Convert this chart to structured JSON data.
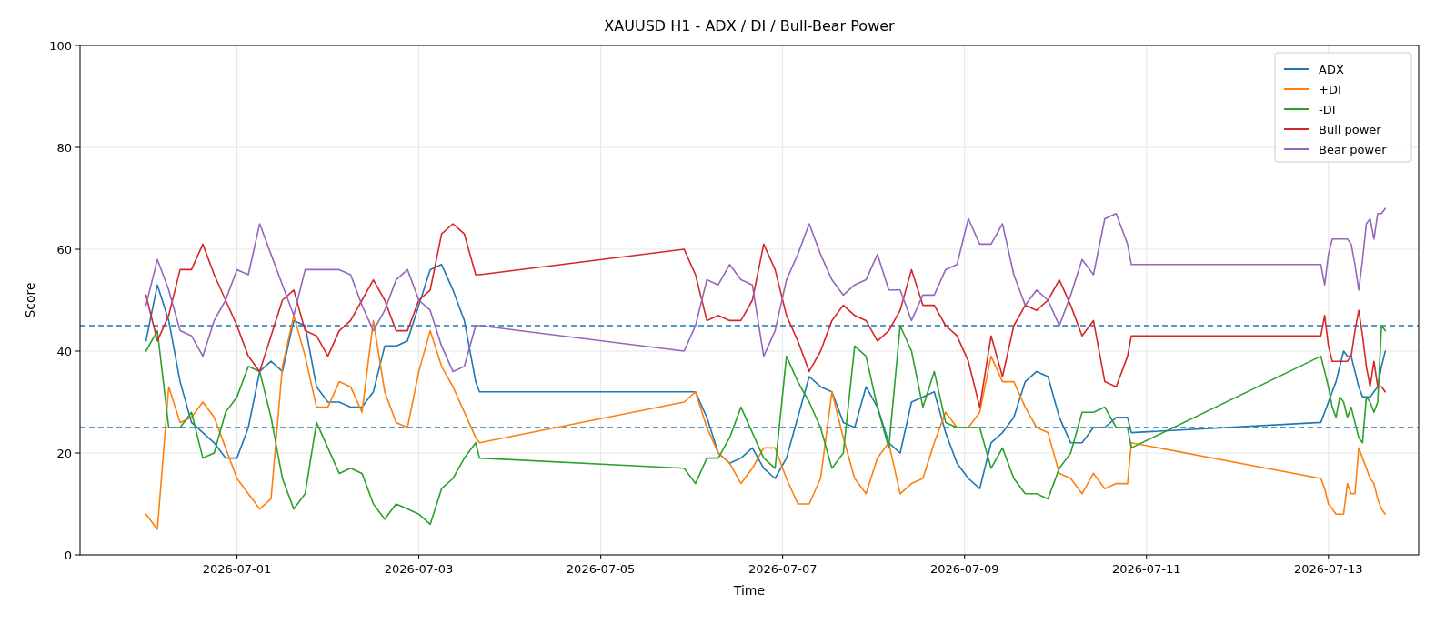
{
  "chart_data": {
    "type": "line",
    "title": "XAUUSD H1 - ADX / DI / Bull-Bear Power",
    "xlabel": "Time",
    "ylabel": "Score",
    "x": [
      "2026-06-30T00:00",
      "2026-06-30T03:00",
      "2026-06-30T06:00",
      "2026-06-30T09:00",
      "2026-06-30T12:00",
      "2026-06-30T15:00",
      "2026-06-30T18:00",
      "2026-06-30T21:00",
      "2026-07-01T00:00",
      "2026-07-01T03:00",
      "2026-07-01T06:00",
      "2026-07-01T09:00",
      "2026-07-01T12:00",
      "2026-07-01T15:00",
      "2026-07-01T18:00",
      "2026-07-01T21:00",
      "2026-07-02T00:00",
      "2026-07-02T03:00",
      "2026-07-02T06:00",
      "2026-07-02T09:00",
      "2026-07-02T12:00",
      "2026-07-02T15:00",
      "2026-07-02T18:00",
      "2026-07-02T21:00",
      "2026-07-03T00:00",
      "2026-07-03T03:00",
      "2026-07-03T06:00",
      "2026-07-03T09:00",
      "2026-07-03T12:00",
      "2026-07-03T15:00",
      "2026-07-03T16:00",
      "2026-07-05T22:00",
      "2026-07-06T01:00",
      "2026-07-06T04:00",
      "2026-07-06T07:00",
      "2026-07-06T10:00",
      "2026-07-06T13:00",
      "2026-07-06T16:00",
      "2026-07-06T19:00",
      "2026-07-06T22:00",
      "2026-07-07T01:00",
      "2026-07-07T04:00",
      "2026-07-07T07:00",
      "2026-07-07T10:00",
      "2026-07-07T13:00",
      "2026-07-07T16:00",
      "2026-07-07T19:00",
      "2026-07-07T22:00",
      "2026-07-08T01:00",
      "2026-07-08T04:00",
      "2026-07-08T07:00",
      "2026-07-08T10:00",
      "2026-07-08T13:00",
      "2026-07-08T16:00",
      "2026-07-08T19:00",
      "2026-07-08T22:00",
      "2026-07-09T01:00",
      "2026-07-09T04:00",
      "2026-07-09T07:00",
      "2026-07-09T10:00",
      "2026-07-09T13:00",
      "2026-07-09T16:00",
      "2026-07-09T19:00",
      "2026-07-09T22:00",
      "2026-07-10T01:00",
      "2026-07-10T04:00",
      "2026-07-10T07:00",
      "2026-07-10T10:00",
      "2026-07-10T13:00",
      "2026-07-10T16:00",
      "2026-07-10T19:00",
      "2026-07-10T20:00",
      "2026-07-12T22:00",
      "2026-07-12T23:00",
      "2026-07-13T00:00",
      "2026-07-13T01:00",
      "2026-07-13T02:00",
      "2026-07-13T03:00",
      "2026-07-13T04:00",
      "2026-07-13T05:00",
      "2026-07-13T06:00",
      "2026-07-13T07:00",
      "2026-07-13T08:00",
      "2026-07-13T09:00",
      "2026-07-13T10:00",
      "2026-07-13T11:00",
      "2026-07-13T12:00",
      "2026-07-13T13:00",
      "2026-07-13T14:00",
      "2026-07-13T15:00"
    ],
    "series": [
      {
        "name": "ADX",
        "color": "#1f77b4",
        "values": [
          42,
          53,
          46,
          34,
          26,
          24,
          22,
          19,
          19,
          25,
          36,
          38,
          36,
          46,
          45,
          33,
          30,
          30,
          29,
          29,
          32,
          41,
          41,
          42,
          49,
          56,
          57,
          52,
          46,
          34,
          32,
          32,
          32,
          27,
          20,
          18,
          19,
          21,
          17,
          15,
          19,
          27,
          35,
          33,
          32,
          26,
          25,
          33,
          29,
          22,
          20,
          30,
          31,
          32,
          24,
          18,
          15,
          13,
          22,
          24,
          27,
          34,
          36,
          35,
          27,
          22,
          22,
          25,
          25,
          27,
          27,
          24,
          26,
          28,
          30,
          32,
          34,
          37,
          40,
          39,
          39,
          36,
          33,
          31,
          31,
          31,
          32,
          33,
          37,
          40
        ]
      },
      {
        "name": "+DI",
        "color": "#ff7f0e",
        "values": [
          8,
          5,
          33,
          26,
          27,
          30,
          27,
          21,
          15,
          12,
          9,
          11,
          37,
          47,
          39,
          29,
          29,
          34,
          33,
          28,
          46,
          32,
          26,
          25,
          36,
          44,
          37,
          33,
          28,
          23,
          22,
          30,
          32,
          25,
          20,
          18,
          14,
          17,
          21,
          21,
          15,
          10,
          10,
          15,
          32,
          23,
          15,
          12,
          19,
          22,
          12,
          14,
          15,
          22,
          28,
          25,
          25,
          28,
          39,
          34,
          34,
          29,
          25,
          24,
          16,
          15,
          12,
          16,
          13,
          14,
          14,
          22,
          15,
          13,
          10,
          9,
          8,
          8,
          8,
          14,
          12,
          12,
          21,
          19,
          17,
          15,
          14,
          11,
          9,
          8
        ]
      },
      {
        "name": "-DI",
        "color": "#2ca02c",
        "values": [
          40,
          44,
          25,
          25,
          28,
          19,
          20,
          28,
          31,
          37,
          36,
          27,
          15,
          9,
          12,
          26,
          21,
          16,
          17,
          16,
          10,
          7,
          10,
          9,
          8,
          6,
          13,
          15,
          19,
          22,
          19,
          17,
          14,
          19,
          19,
          23,
          29,
          24,
          19,
          17,
          39,
          34,
          30,
          25,
          17,
          20,
          41,
          39,
          29,
          21,
          45,
          40,
          29,
          36,
          26,
          25,
          25,
          25,
          17,
          21,
          15,
          12,
          12,
          11,
          17,
          20,
          28,
          28,
          29,
          25,
          25,
          21,
          39,
          36,
          33,
          29,
          27,
          31,
          30,
          27,
          29,
          26,
          23,
          22,
          31,
          30,
          28,
          30,
          45,
          44
        ]
      },
      {
        "name": "Bull power",
        "color": "#d62728",
        "values": [
          51,
          42,
          47,
          56,
          56,
          61,
          55,
          50,
          45,
          39,
          36,
          43,
          50,
          52,
          44,
          43,
          39,
          44,
          46,
          50,
          54,
          50,
          44,
          44,
          50,
          52,
          63,
          65,
          63,
          55,
          55,
          60,
          55,
          46,
          47,
          46,
          46,
          50,
          61,
          56,
          47,
          42,
          36,
          40,
          46,
          49,
          47,
          46,
          42,
          44,
          48,
          56,
          49,
          49,
          45,
          43,
          38,
          29,
          43,
          35,
          45,
          49,
          48,
          50,
          54,
          49,
          43,
          46,
          34,
          33,
          39,
          43,
          43,
          47,
          41,
          38,
          38,
          38,
          38,
          38,
          39,
          44,
          48,
          43,
          37,
          33,
          38,
          33,
          33,
          32
        ]
      },
      {
        "name": "Bear power",
        "color": "#9467bd",
        "values": [
          49,
          58,
          52,
          44,
          43,
          39,
          46,
          50,
          56,
          55,
          65,
          59,
          53,
          47,
          56,
          56,
          56,
          56,
          55,
          49,
          44,
          48,
          54,
          56,
          50,
          48,
          41,
          36,
          37,
          45,
          45,
          40,
          45,
          54,
          53,
          57,
          54,
          53,
          39,
          44,
          54,
          59,
          65,
          59,
          54,
          51,
          53,
          54,
          59,
          52,
          52,
          46,
          51,
          51,
          56,
          57,
          66,
          61,
          61,
          65,
          55,
          49,
          52,
          50,
          45,
          51,
          58,
          55,
          66,
          67,
          61,
          57,
          57,
          53,
          59,
          62,
          62,
          62,
          62,
          62,
          61,
          57,
          52,
          58,
          65,
          66,
          62,
          67,
          67,
          68
        ]
      }
    ],
    "ref_lines": [
      {
        "axis": "y",
        "value": 45,
        "color": "#1f77b4",
        "line_style": "dashed"
      },
      {
        "axis": "y",
        "value": 25,
        "color": "#1f77b4",
        "line_style": "dashed"
      }
    ],
    "xlim": [
      "2026-06-29T06:36",
      "2026-07-13T23:48"
    ],
    "xticks": [
      "2026-07-01",
      "2026-07-03",
      "2026-07-05",
      "2026-07-07",
      "2026-07-09",
      "2026-07-11",
      "2026-07-13"
    ],
    "ylim": [
      0,
      100
    ],
    "yticks": [
      0,
      20,
      40,
      60,
      80,
      100
    ],
    "grid": true,
    "legend": "top right"
  }
}
